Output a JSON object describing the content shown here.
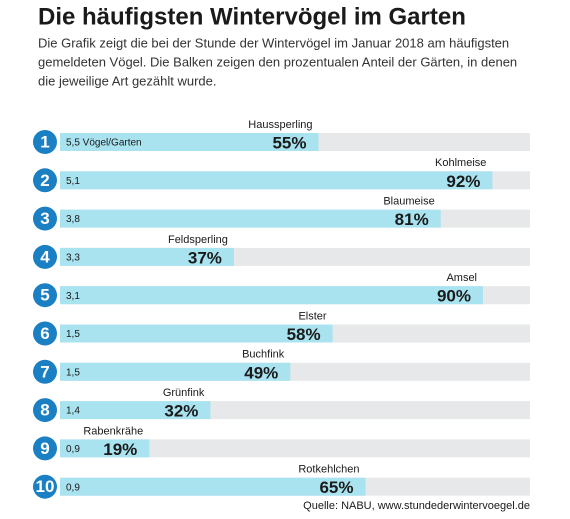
{
  "chart_data": {
    "type": "bar",
    "title": "Die häufigsten Wintervögel im Garten",
    "subtitle": [
      "Die Grafik zeigt die bei der Stunde der Wintervögel im Januar 2018 am häufigsten",
      "gemeldeten Vögel. Die Balken zeigen den prozentualen Anteil der Gärten, in denen",
      "die jeweilige Art gezählt wurde."
    ],
    "ranks": [
      "1",
      "2",
      "3",
      "4",
      "5",
      "6",
      "7",
      "8",
      "9",
      "10"
    ],
    "categories": [
      "Haussperling",
      "Kohlmeise",
      "Blaumeise",
      "Feldsperling",
      "Amsel",
      "Elster",
      "Buchfink",
      "Grünfink",
      "Rabenkrähe",
      "Rotkehlchen"
    ],
    "count_labels": [
      "5,5 Vögel/Garten",
      "5,1",
      "3,8",
      "3,3",
      "3,1",
      "1,5",
      "1,5",
      "1,4",
      "0,9",
      "0,9"
    ],
    "values": [
      55,
      92,
      81,
      37,
      90,
      58,
      49,
      32,
      19,
      65
    ],
    "value_labels": [
      "55%",
      "92%",
      "81%",
      "37%",
      "90%",
      "58%",
      "49%",
      "32%",
      "19%",
      "65%"
    ],
    "xlim": [
      0,
      100
    ],
    "color": "#a9e3f0",
    "track_color": "#e6e8e9",
    "rank_color": "#1b7fc3",
    "source": "Quelle: NABU, www.stundederwintervoegel.de"
  }
}
